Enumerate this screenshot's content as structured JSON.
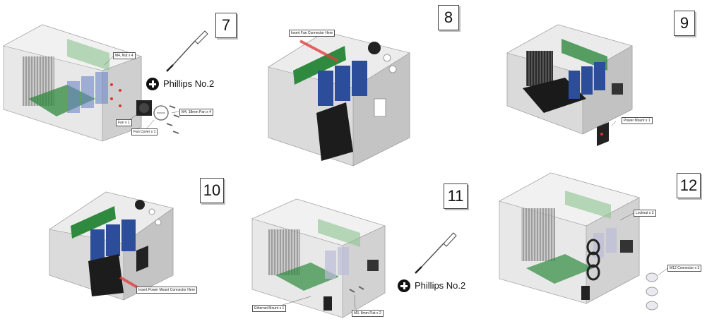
{
  "steps": [
    {
      "number": "7",
      "callouts": {
        "nut": "M4, Nut x 4",
        "fan": "Fan x 1",
        "fan_cover": "Fan Cover x 1",
        "pan_screw": "M4, 18mm Pan x 4"
      },
      "tool": "Phillips No.2"
    },
    {
      "number": "8",
      "callouts": {
        "fan_connector": "Insert Fan Connector Here"
      }
    },
    {
      "number": "9",
      "callouts": {
        "power_mount": "Power Mount x 1"
      }
    },
    {
      "number": "10",
      "callouts": {
        "power_connector": "Insert Power Mount Connector Here"
      }
    },
    {
      "number": "11",
      "callouts": {
        "ethernet": "Ethernet Mount x 1",
        "flat_screw": "M3, 8mm Flat x 2"
      },
      "tool": "Phillips No.2"
    },
    {
      "number": "12",
      "callouts": {
        "locknut": "Locknut x 3",
        "m12": "M12 Connector x 3"
      }
    }
  ],
  "icons": {
    "tool": "screwdriver-icon",
    "drive": "phillips-head-icon"
  },
  "colors": {
    "enclosure": "#c9c9c9",
    "pcb": "#2f8a3f",
    "blue_module": "#2c4e9a",
    "highlight": "#e04040"
  }
}
